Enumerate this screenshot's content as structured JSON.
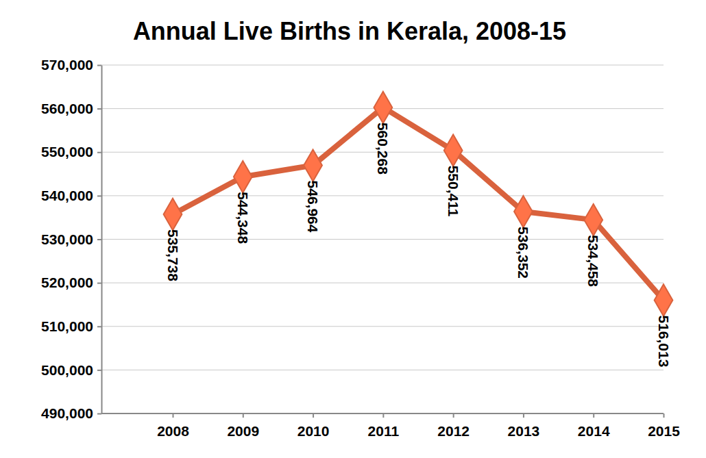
{
  "chart_data": {
    "type": "line",
    "title": "Annual Live Births in Kerala, 2008-15",
    "categories": [
      "2008",
      "2009",
      "2010",
      "2011",
      "2012",
      "2013",
      "2014",
      "2015"
    ],
    "values": [
      535738,
      544348,
      546964,
      560268,
      550411,
      536352,
      534458,
      516013
    ],
    "value_labels": [
      "535,738",
      "544,348",
      "546,964",
      "560,268",
      "550,411",
      "536,352",
      "534,458",
      "516,013"
    ],
    "data_labels": true,
    "color": "#d9623d",
    "marker": "diamond",
    "ylim": [
      490000,
      570000
    ],
    "yticks": [
      {
        "value": 490000,
        "label": "490,000"
      },
      {
        "value": 500000,
        "label": "500,000"
      },
      {
        "value": 510000,
        "label": "510,000"
      },
      {
        "value": 520000,
        "label": "520,000"
      },
      {
        "value": 530000,
        "label": "530,000"
      },
      {
        "value": 540000,
        "label": "540,000"
      },
      {
        "value": 550000,
        "label": "550,000"
      },
      {
        "value": 560000,
        "label": "560,000"
      },
      {
        "value": 570000,
        "label": "570,000"
      }
    ],
    "grid": true
  }
}
